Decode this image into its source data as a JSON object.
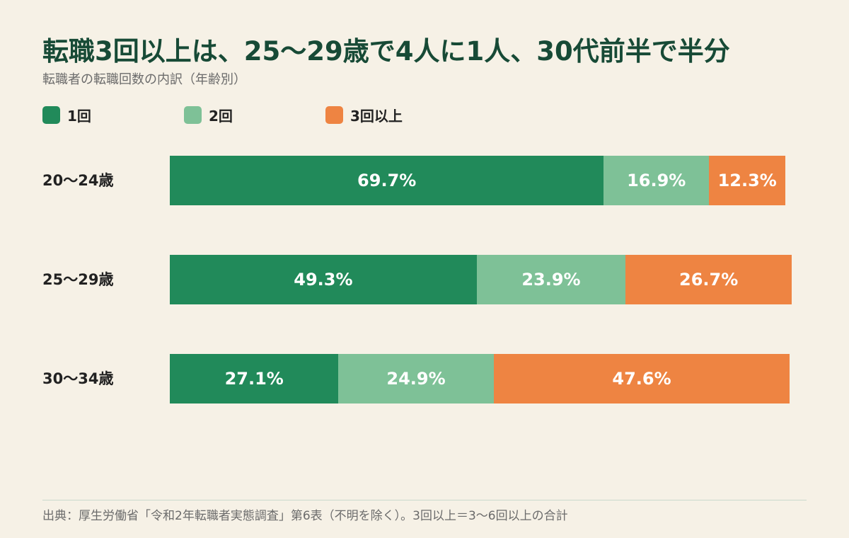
{
  "header": {
    "title": "転職3回以上は、25〜29歳で4人に1人、30代前半で半分",
    "subtitle": "転職者の転職回数の内訳（年齢別）"
  },
  "legend": [
    {
      "label": "1回",
      "color": "#218a5a"
    },
    {
      "label": "2回",
      "color": "#7ec197"
    },
    {
      "label": "3回以上",
      "color": "#ee8442"
    }
  ],
  "chart_data": {
    "type": "bar",
    "orientation": "horizontal",
    "stacked": true,
    "categories": [
      "20〜24歳",
      "25〜29歳",
      "30〜34歳"
    ],
    "series": [
      {
        "name": "1回",
        "values": [
          69.7,
          49.3,
          27.1
        ],
        "labels": [
          "69.7%",
          "49.3%",
          "27.1%"
        ],
        "color": "#218a5a"
      },
      {
        "name": "2回",
        "values": [
          16.9,
          23.9,
          24.9
        ],
        "labels": [
          "16.9%",
          "23.9%",
          "24.9%"
        ],
        "color": "#7ec197"
      },
      {
        "name": "3回以上",
        "values": [
          12.3,
          26.7,
          47.6
        ],
        "labels": [
          "12.3%",
          "26.7%",
          "47.6%"
        ],
        "color": "#ee8442"
      }
    ],
    "unit": "%",
    "xlim": [
      0,
      100
    ],
    "grid": false,
    "legend_position": "top-left"
  },
  "footer": {
    "source": "出典：厚生労働省「令和2年転職者実態調査」第6表（不明を除く）。3回以上＝3〜6回以上の合計"
  }
}
